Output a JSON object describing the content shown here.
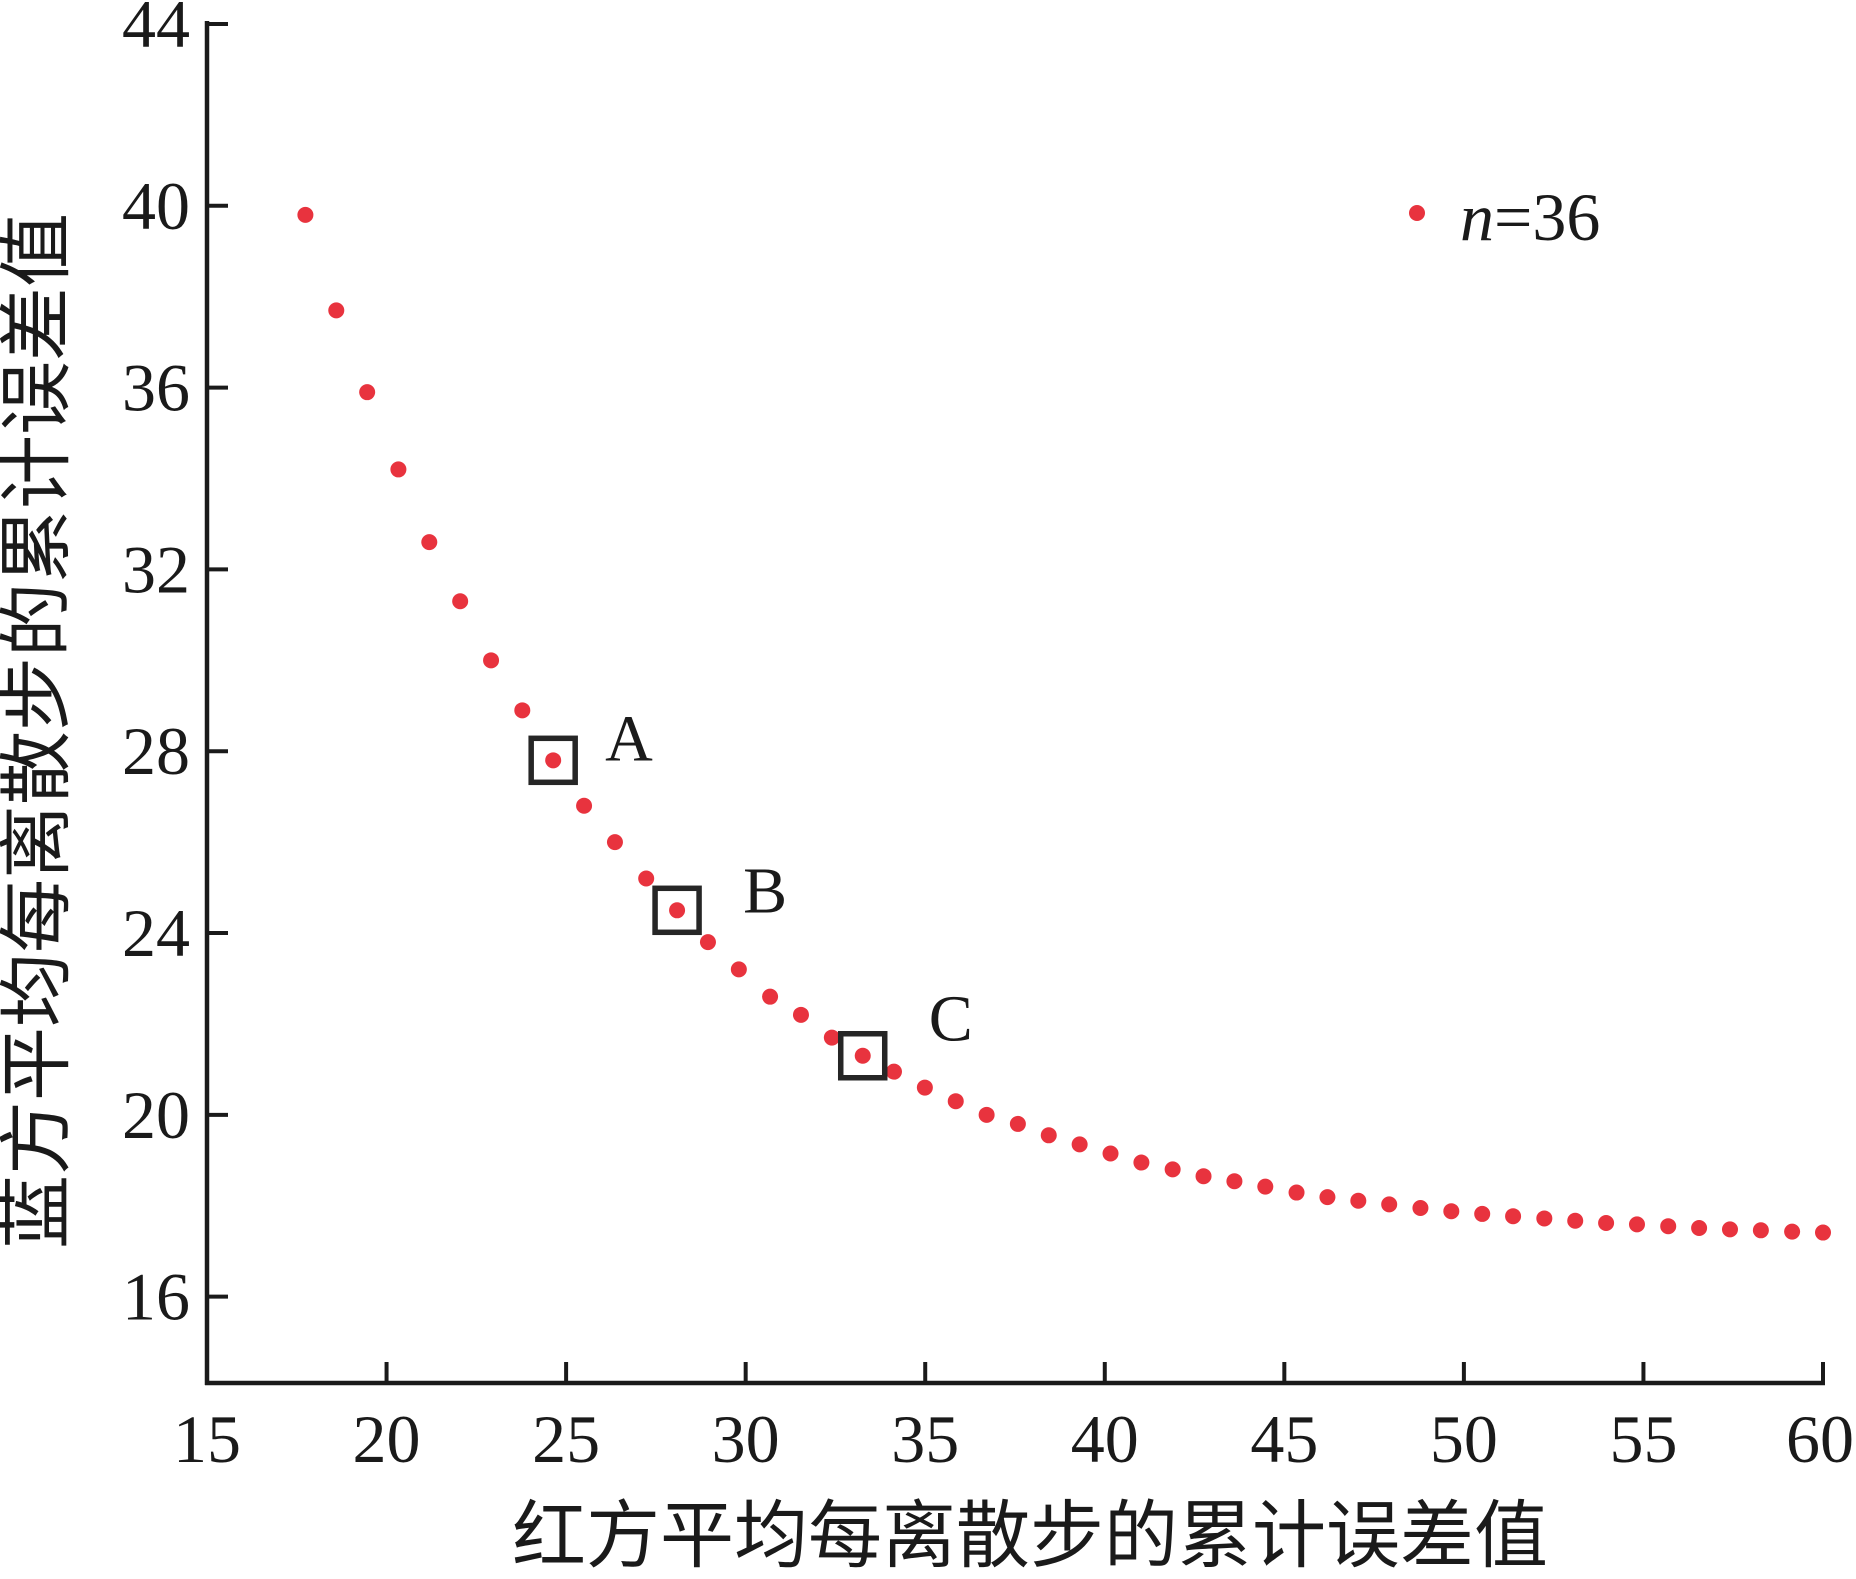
{
  "chart_data": {
    "type": "scatter",
    "xlabel": "红方平均每离散步的累计误差值",
    "ylabel": "蓝方平均每离散步的累计误差值",
    "xlim": [
      15,
      60
    ],
    "ylim": [
      14.1,
      44
    ],
    "xticks": [
      15,
      20,
      25,
      30,
      35,
      40,
      45,
      50,
      55,
      60
    ],
    "yticks": [
      16,
      20,
      24,
      28,
      32,
      36,
      40,
      44
    ],
    "grid": false,
    "legend_position": "top-right",
    "axis_color": "#1a1a1a",
    "highlight_color": "#262626",
    "series": [
      {
        "name": "n=36",
        "color": "#e8333e",
        "marker": "circle",
        "x": [
          17.74,
          18.6,
          19.46,
          20.33,
          21.19,
          22.05,
          22.91,
          23.78,
          24.64,
          25.5,
          26.36,
          27.23,
          28.09,
          28.95,
          29.81,
          30.68,
          31.54,
          32.4,
          33.26,
          34.13,
          34.99,
          35.85,
          36.71,
          37.58,
          38.44,
          39.3,
          40.16,
          41.02,
          41.89,
          42.75,
          43.61,
          44.47,
          45.34,
          46.2,
          47.06,
          47.92,
          48.79,
          49.65,
          50.51,
          51.37,
          52.24,
          53.1,
          53.96,
          54.82,
          55.69,
          56.55,
          57.41,
          58.27,
          59.14,
          60.0
        ],
        "y": [
          39.8,
          37.7,
          35.9,
          34.2,
          32.6,
          31.3,
          30.0,
          28.9,
          27.8,
          26.8,
          26.0,
          25.2,
          24.5,
          23.8,
          23.2,
          22.6,
          22.2,
          21.7,
          21.3,
          20.95,
          20.6,
          20.3,
          20.0,
          19.8,
          19.55,
          19.35,
          19.15,
          18.95,
          18.8,
          18.65,
          18.54,
          18.42,
          18.29,
          18.19,
          18.11,
          18.03,
          17.95,
          17.88,
          17.82,
          17.77,
          17.72,
          17.67,
          17.62,
          17.59,
          17.55,
          17.51,
          17.48,
          17.46,
          17.43,
          17.41
        ]
      }
    ],
    "annotations": [
      {
        "label": "A",
        "x": 24.64,
        "y": 27.8
      },
      {
        "label": "B",
        "x": 28.09,
        "y": 24.5
      },
      {
        "label": "C",
        "x": 33.26,
        "y": 21.3
      }
    ]
  }
}
